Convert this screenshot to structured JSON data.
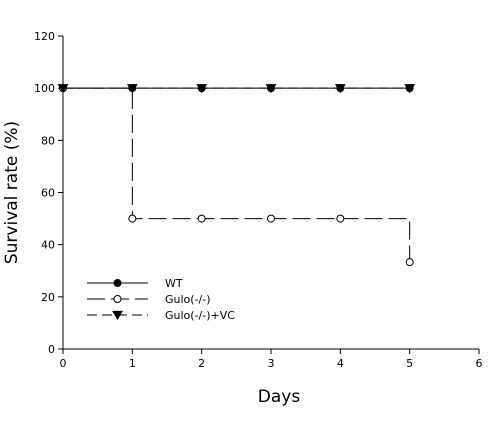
{
  "chart_data": {
    "type": "line",
    "xlabel": "Days",
    "ylabel": "Survival rate (%)",
    "xlim": [
      0,
      6
    ],
    "ylim": [
      0,
      120
    ],
    "x_ticks": [
      "0",
      "1",
      "2",
      "3",
      "4",
      "5",
      "6"
    ],
    "y_ticks": [
      "0",
      "20",
      "40",
      "60",
      "80",
      "100",
      "120"
    ],
    "grid": false,
    "step": true,
    "legend_position": "lower-left",
    "series": [
      {
        "name": "WT",
        "marker": "filled-circle",
        "line_style": "solid",
        "x": [
          0,
          1,
          2,
          3,
          4,
          5
        ],
        "y": [
          100,
          100,
          100,
          100,
          100,
          100
        ]
      },
      {
        "name": "Gulo(-/-)",
        "marker": "open-circle",
        "line_style": "long-dash",
        "x": [
          0,
          1,
          2,
          3,
          4,
          5
        ],
        "y": [
          100,
          50,
          50,
          50,
          50,
          33.3
        ]
      },
      {
        "name": "Gulo(-/-)+VC",
        "marker": "filled-triangle-down",
        "line_style": "dash",
        "x": [
          0,
          1,
          2,
          3,
          4,
          5
        ],
        "y": [
          100,
          100,
          100,
          100,
          100,
          100
        ]
      }
    ]
  }
}
